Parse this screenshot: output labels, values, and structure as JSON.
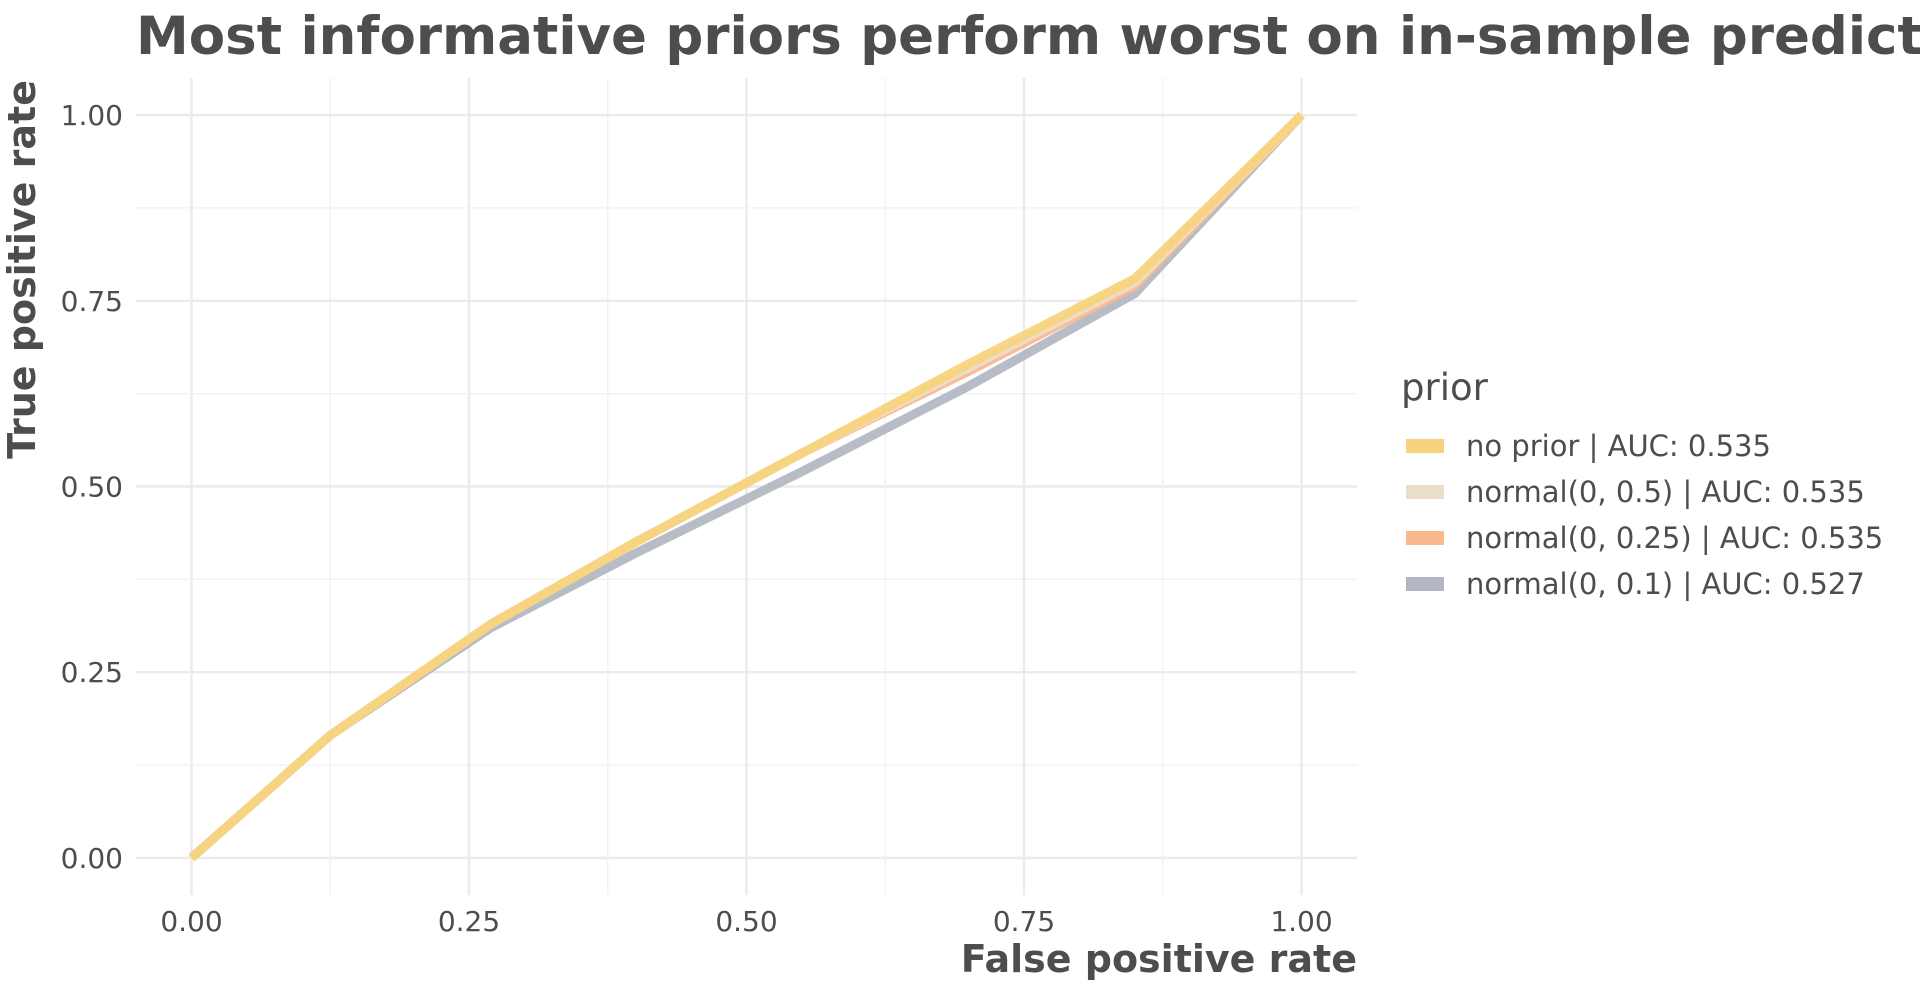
{
  "chart_data": {
    "type": "line",
    "title": "Most informative priors perform worst on in-sample predictions",
    "xlabel": "False positive rate",
    "ylabel": "True positive rate",
    "xlim": [
      -0.05,
      1.05
    ],
    "ylim": [
      -0.05,
      1.05
    ],
    "x_ticks": [
      0.0,
      0.25,
      0.5,
      0.75,
      1.0
    ],
    "y_ticks": [
      0.0,
      0.25,
      0.5,
      0.75,
      1.0
    ],
    "x_tick_labels": [
      "0.00",
      "0.25",
      "0.50",
      "0.75",
      "1.00"
    ],
    "y_tick_labels": [
      "0.00",
      "0.25",
      "0.50",
      "0.75",
      "1.00"
    ],
    "grid": true,
    "legend_title": "prior",
    "legend_position": "right",
    "series": [
      {
        "name": "normal(0, 0.1) | AUC: 0.527",
        "color": "#b1b6c2",
        "x": [
          0.0,
          0.125,
          0.27,
          0.4,
          0.55,
          0.7,
          0.85,
          1.0
        ],
        "y": [
          0.0,
          0.165,
          0.31,
          0.41,
          0.52,
          0.635,
          0.76,
          1.0
        ]
      },
      {
        "name": "normal(0, 0.25) | AUC: 0.535",
        "color": "#f8b98e",
        "x": [
          0.0,
          0.125,
          0.27,
          0.4,
          0.55,
          0.7,
          0.85,
          1.0
        ],
        "y": [
          0.0,
          0.165,
          0.315,
          0.425,
          0.545,
          0.655,
          0.77,
          1.0
        ]
      },
      {
        "name": "normal(0, 0.5) | AUC: 0.535",
        "color": "#ebdfcb",
        "x": [
          0.0,
          0.125,
          0.27,
          0.4,
          0.55,
          0.7,
          0.85,
          1.0
        ],
        "y": [
          0.0,
          0.165,
          0.315,
          0.425,
          0.545,
          0.66,
          0.775,
          1.0
        ]
      },
      {
        "name": "no prior | AUC: 0.535",
        "color": "#f6d27c",
        "x": [
          0.0,
          0.125,
          0.27,
          0.4,
          0.55,
          0.7,
          0.85,
          1.0
        ],
        "y": [
          0.0,
          0.165,
          0.315,
          0.425,
          0.545,
          0.665,
          0.78,
          1.0
        ]
      }
    ],
    "legend_order": [
      "no prior | AUC: 0.535",
      "normal(0, 0.5) | AUC: 0.535",
      "normal(0, 0.25) | AUC: 0.535",
      "normal(0, 0.1) | AUC: 0.527"
    ]
  }
}
